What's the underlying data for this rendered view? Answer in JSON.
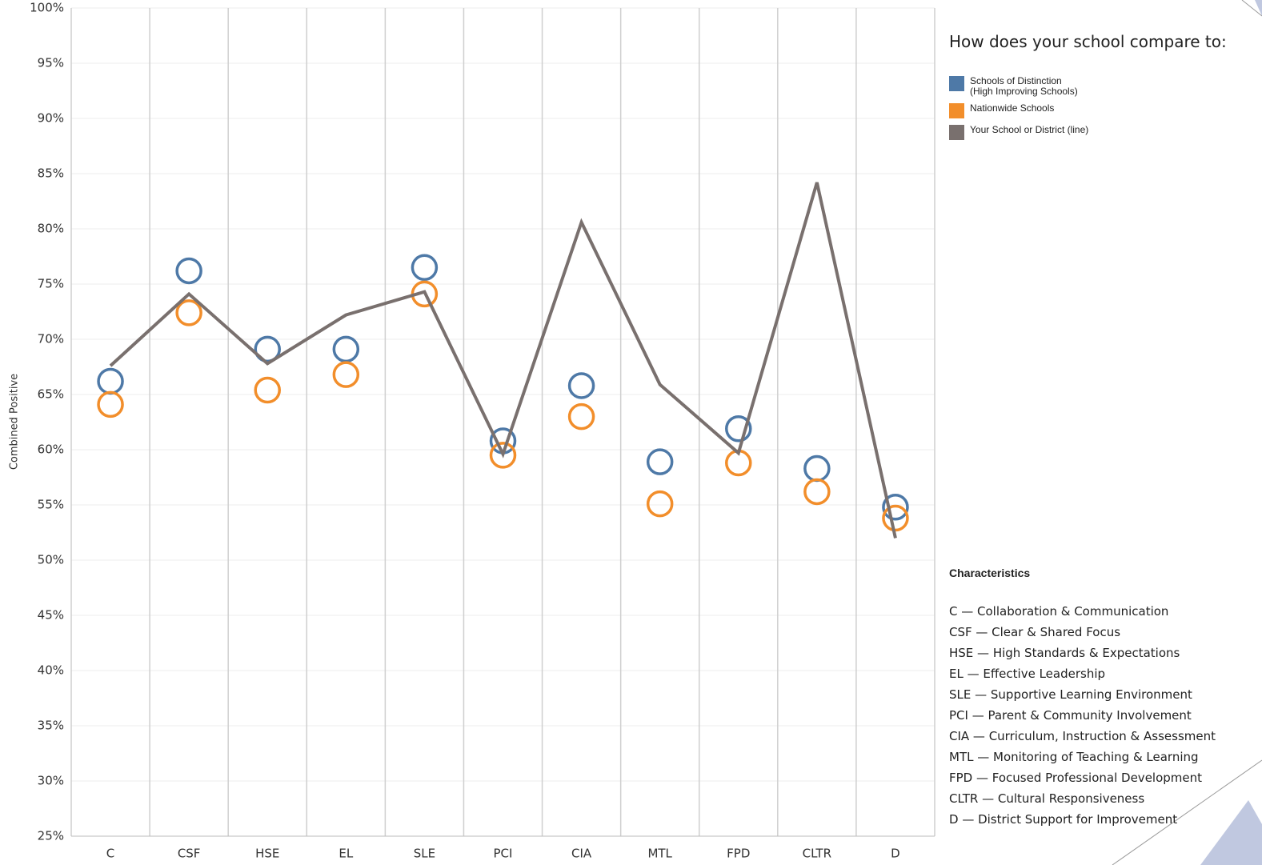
{
  "chart_data": {
    "type": "line",
    "y_axis_label": "Combined Positive",
    "categories": [
      "C",
      "CSF",
      "HSE",
      "EL",
      "SLE",
      "PCI",
      "CIA",
      "MTL",
      "FPD",
      "CLTR",
      "D"
    ],
    "ylim": [
      25,
      100
    ],
    "yticks": [
      {
        "value": 25,
        "label": "25%"
      },
      {
        "value": 30,
        "label": "30%"
      },
      {
        "value": 35,
        "label": "35%"
      },
      {
        "value": 40,
        "label": "40%"
      },
      {
        "value": 45,
        "label": "45%"
      },
      {
        "value": 50,
        "label": "50%"
      },
      {
        "value": 55,
        "label": "55%"
      },
      {
        "value": 60,
        "label": "60%"
      },
      {
        "value": 65,
        "label": "65%"
      },
      {
        "value": 70,
        "label": "70%"
      },
      {
        "value": 75,
        "label": "75%"
      },
      {
        "value": 80,
        "label": "80%"
      },
      {
        "value": 85,
        "label": "85%"
      },
      {
        "value": 90,
        "label": "90%"
      },
      {
        "value": 95,
        "label": "95%"
      },
      {
        "value": 100,
        "label": "100%"
      }
    ],
    "grid": true,
    "legend_title": "How does your school compare to:",
    "series": [
      {
        "name": "Schools of Distinction\n(High Improving Schools)",
        "color": "#4e79a7",
        "marker": "circle",
        "values": [
          66.2,
          76.2,
          69.1,
          69.1,
          76.5,
          60.8,
          65.8,
          58.9,
          61.9,
          58.3,
          54.8
        ]
      },
      {
        "name": "Nationwide Schools",
        "color": "#f28e2b",
        "marker": "circle",
        "values": [
          64.1,
          72.4,
          65.4,
          66.8,
          74.1,
          59.5,
          63.0,
          55.1,
          58.8,
          56.2,
          53.8
        ]
      },
      {
        "name": "Your School or District (line)",
        "color": "#79706e",
        "marker": "line",
        "values": [
          67.6,
          74.1,
          67.8,
          72.2,
          74.3,
          59.6,
          80.6,
          65.9,
          59.7,
          84.2,
          52.0
        ]
      }
    ],
    "characteristics_title": "Characteristics",
    "characteristics": [
      "C — Collaboration & Communication",
      "CSF — Clear & Shared Focus",
      "HSE — High Standards & Expectations",
      "EL — Effective Leadership",
      "SLE — Supportive Learning Environment",
      "PCI — Parent & Community Involvement",
      "CIA — Curriculum, Instruction & Assessment",
      "MTL — Monitoring of Teaching & Learning",
      "FPD — Focused Professional Development",
      "CLTR — Cultural Responsiveness",
      "D — District Support for Improvement"
    ]
  }
}
